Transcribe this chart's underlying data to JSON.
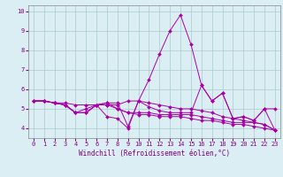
{
  "xlabel": "Windchill (Refroidissement éolien,°C)",
  "x_values": [
    0,
    1,
    2,
    3,
    4,
    5,
    6,
    7,
    8,
    9,
    10,
    11,
    12,
    13,
    14,
    15,
    16,
    17,
    18,
    19,
    20,
    21,
    22,
    23
  ],
  "series": [
    [
      5.4,
      5.4,
      5.3,
      5.3,
      5.2,
      5.2,
      5.2,
      5.2,
      5.2,
      5.4,
      5.4,
      5.3,
      5.2,
      5.1,
      5.0,
      5.0,
      4.9,
      4.8,
      4.6,
      4.5,
      4.4,
      4.3,
      4.2,
      3.9
    ],
    [
      5.4,
      5.4,
      5.3,
      5.2,
      4.8,
      4.8,
      5.2,
      5.3,
      5.3,
      4.1,
      5.4,
      5.1,
      4.9,
      4.8,
      4.8,
      4.8,
      6.2,
      5.4,
      5.8,
      4.5,
      4.6,
      4.4,
      5.0,
      5.0
    ],
    [
      5.4,
      5.4,
      5.3,
      5.2,
      4.8,
      4.8,
      5.2,
      4.6,
      4.5,
      4.0,
      5.4,
      6.5,
      7.8,
      9.0,
      9.8,
      8.3,
      6.2,
      5.4,
      5.8,
      4.5,
      4.6,
      4.4,
      5.0,
      3.9
    ],
    [
      5.4,
      5.4,
      5.3,
      5.2,
      4.8,
      5.0,
      5.2,
      5.2,
      5.0,
      4.8,
      4.8,
      4.8,
      4.7,
      4.7,
      4.7,
      4.7,
      4.6,
      4.5,
      4.4,
      4.3,
      4.3,
      4.3,
      4.2,
      3.9
    ],
    [
      5.4,
      5.4,
      5.3,
      5.2,
      4.8,
      4.8,
      5.2,
      5.3,
      5.0,
      4.8,
      4.7,
      4.7,
      4.6,
      4.6,
      4.6,
      4.5,
      4.4,
      4.4,
      4.3,
      4.2,
      4.2,
      4.1,
      4.0,
      3.9
    ]
  ],
  "line_color": "#AA00AA",
  "bg_color": "#DAEEF3",
  "grid_color": "#AACCCC",
  "ylim": [
    3.5,
    10.3
  ],
  "yticks": [
    4,
    5,
    6,
    7,
    8,
    9,
    10
  ],
  "marker": "D",
  "markersize": 2.0,
  "linewidth": 0.7,
  "tick_color": "#800080",
  "label_fontsize": 5.0,
  "xlabel_fontsize": 5.5
}
